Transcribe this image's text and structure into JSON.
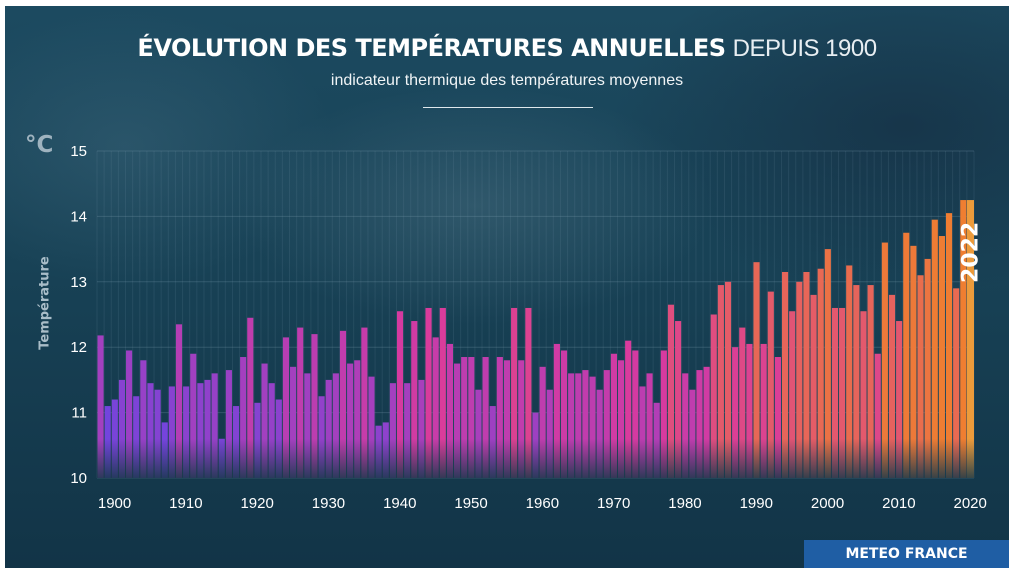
{
  "title_main": "ÉVOLUTION DES TEMPÉRATURES ANNUELLES",
  "title_sub": "DEPUIS 1900",
  "subtitle": "indicateur thermique des températures moyennes",
  "brand": "METEO FRANCE",
  "colors": {
    "background": "#184256",
    "cool": "#6e45e0",
    "mid": "#d93a9e",
    "warm": "#ef7f30",
    "highlight": "#ec9b3b",
    "brand_bar": "#1f5ea4"
  },
  "chart_data": {
    "type": "bar",
    "unit_label": "°C",
    "ylabel": "Température",
    "ylim": [
      10,
      15
    ],
    "yticks": [
      10,
      11,
      12,
      13,
      14,
      15
    ],
    "xticks": [
      1900,
      1910,
      1920,
      1930,
      1940,
      1950,
      1960,
      1970,
      1980,
      1990,
      2000,
      2010,
      2020
    ],
    "highlight_label": "2022",
    "x": [
      1900,
      1901,
      1902,
      1903,
      1904,
      1905,
      1906,
      1907,
      1908,
      1909,
      1910,
      1911,
      1912,
      1913,
      1914,
      1915,
      1916,
      1917,
      1918,
      1919,
      1920,
      1921,
      1922,
      1923,
      1924,
      1925,
      1926,
      1927,
      1928,
      1929,
      1930,
      1931,
      1932,
      1933,
      1934,
      1935,
      1936,
      1937,
      1938,
      1939,
      1940,
      1941,
      1942,
      1943,
      1944,
      1945,
      1946,
      1947,
      1948,
      1949,
      1950,
      1951,
      1952,
      1953,
      1954,
      1955,
      1956,
      1957,
      1958,
      1959,
      1960,
      1961,
      1962,
      1963,
      1964,
      1965,
      1966,
      1967,
      1968,
      1969,
      1970,
      1971,
      1972,
      1973,
      1974,
      1975,
      1976,
      1977,
      1978,
      1979,
      1980,
      1981,
      1982,
      1983,
      1984,
      1985,
      1986,
      1987,
      1988,
      1989,
      1990,
      1991,
      1992,
      1993,
      1994,
      1995,
      1996,
      1997,
      1998,
      1999,
      2000,
      2001,
      2002,
      2003,
      2004,
      2005,
      2006,
      2007,
      2008,
      2009,
      2010,
      2011,
      2012,
      2013,
      2014,
      2015,
      2016,
      2017,
      2018,
      2019,
      2020,
      2021,
      2022
    ],
    "values": [
      12.18,
      11.1,
      11.2,
      11.5,
      11.95,
      11.25,
      11.8,
      11.45,
      11.35,
      10.85,
      11.4,
      12.35,
      11.4,
      11.9,
      11.45,
      11.5,
      11.6,
      10.6,
      11.65,
      11.1,
      11.85,
      12.45,
      11.15,
      11.75,
      11.45,
      11.2,
      12.15,
      11.7,
      12.3,
      11.6,
      12.2,
      11.25,
      11.5,
      11.6,
      12.25,
      11.75,
      11.8,
      12.3,
      11.55,
      10.8,
      10.85,
      11.45,
      12.55,
      11.45,
      12.4,
      11.5,
      12.6,
      12.15,
      12.6,
      12.05,
      11.75,
      11.85,
      11.85,
      11.35,
      11.85,
      11.1,
      11.85,
      11.8,
      12.6,
      11.8,
      12.6,
      11.0,
      11.7,
      11.35,
      12.05,
      11.95,
      11.6,
      11.6,
      11.65,
      11.55,
      11.35,
      11.65,
      11.9,
      11.8,
      12.1,
      11.95,
      11.4,
      11.6,
      11.15,
      11.95,
      12.65,
      12.4,
      11.6,
      11.35,
      11.65,
      11.7,
      12.5,
      12.95,
      13.0,
      12.0,
      12.3,
      12.05,
      13.3,
      12.05,
      12.85,
      11.85,
      13.15,
      12.55,
      13.0,
      13.15,
      12.8,
      13.2,
      13.5,
      12.6,
      12.6,
      13.25,
      12.95,
      12.55,
      12.95,
      11.9,
      13.6,
      12.8,
      12.4,
      13.75,
      13.55,
      13.1,
      13.35,
      13.95,
      13.7,
      14.05,
      12.9,
      14.25,
      14.25
    ]
  }
}
